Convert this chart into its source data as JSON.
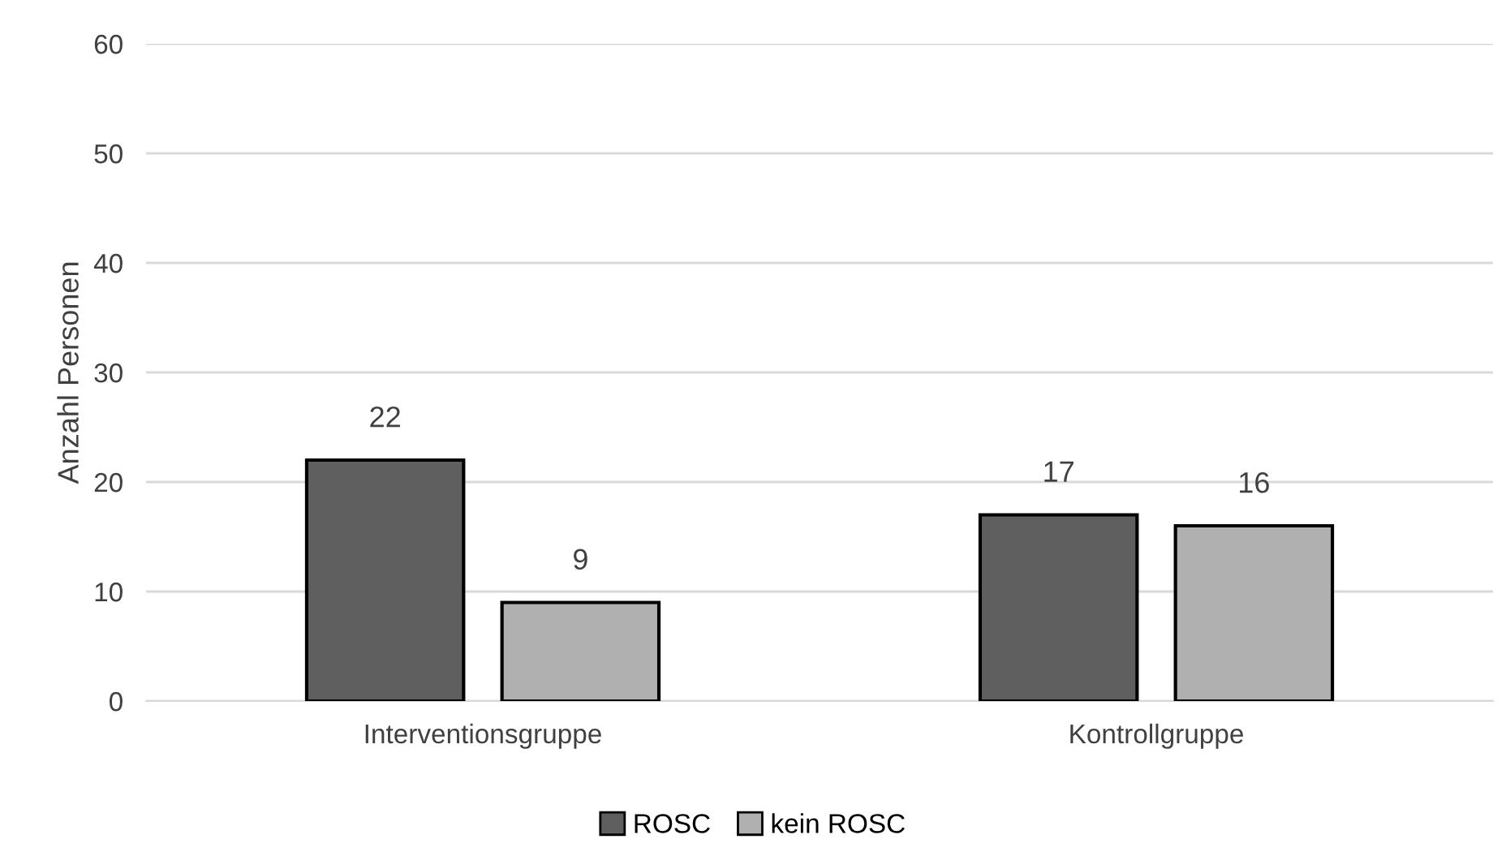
{
  "chart_data": {
    "type": "bar",
    "ylabel": "Anzahl Personen",
    "categories": [
      "Interventionsgruppe",
      "Kontrollgruppe"
    ],
    "series": [
      {
        "name": "ROSC",
        "color": "#5f5f5f",
        "values": [
          22,
          17
        ]
      },
      {
        "name": "kein ROSC",
        "color": "#b0b0b0",
        "values": [
          9,
          16
        ]
      }
    ],
    "ylim": [
      0,
      60
    ],
    "yticks": [
      0,
      10,
      20,
      30,
      40,
      50,
      60
    ],
    "grid": "y",
    "legend": "bottom",
    "data_labels": true
  }
}
